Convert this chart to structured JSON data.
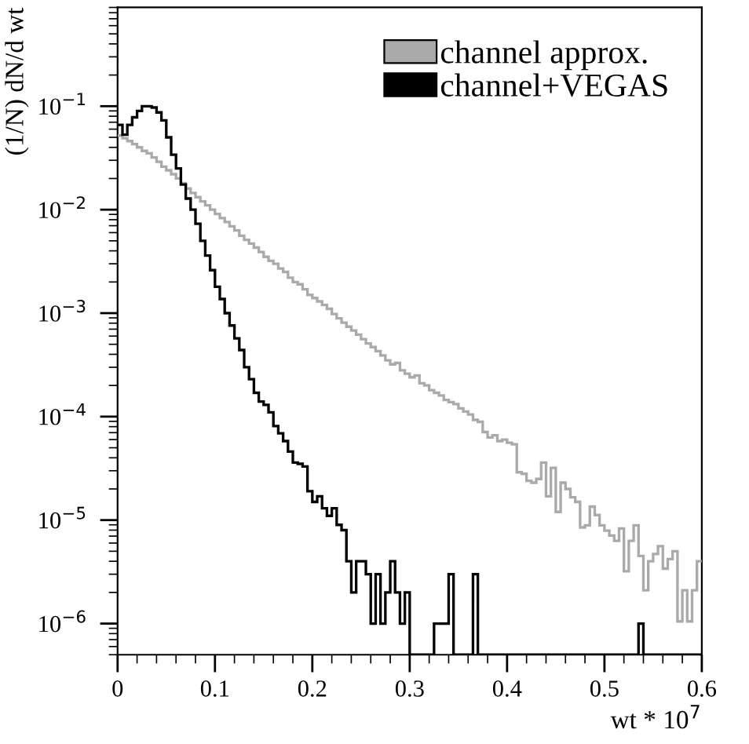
{
  "chart_data": {
    "type": "histogram",
    "xlabel": "wt * 10$^{7}$",
    "ylabel": "(1/N) dN/d wt",
    "bins": [
      0,
      0.005,
      0.01,
      0.015,
      0.02,
      0.025,
      0.03,
      0.035,
      0.04,
      0.045,
      0.05,
      0.055,
      0.06,
      0.065,
      0.07,
      0.075,
      0.08,
      0.085,
      0.09,
      0.095,
      0.1,
      0.105,
      0.11,
      0.115,
      0.12,
      0.125,
      0.13,
      0.135,
      0.14,
      0.145,
      0.15,
      0.155,
      0.16,
      0.165,
      0.17,
      0.175,
      0.18,
      0.185,
      0.19,
      0.195,
      0.2,
      0.205,
      0.21,
      0.215,
      0.22,
      0.225,
      0.23,
      0.235,
      0.24,
      0.245,
      0.25,
      0.255,
      0.26,
      0.265,
      0.27,
      0.275,
      0.28,
      0.285,
      0.29,
      0.295,
      0.3,
      0.305,
      0.31,
      0.315,
      0.32,
      0.325,
      0.33,
      0.335,
      0.34,
      0.345,
      0.35,
      0.355,
      0.36,
      0.365,
      0.37,
      0.375,
      0.38,
      0.385,
      0.39,
      0.395,
      0.4,
      0.405,
      0.41,
      0.415,
      0.42,
      0.425,
      0.43,
      0.435,
      0.44,
      0.445,
      0.45,
      0.455,
      0.46,
      0.465,
      0.47,
      0.475,
      0.48,
      0.485,
      0.49,
      0.495,
      0.5,
      0.505,
      0.51,
      0.515,
      0.52,
      0.525,
      0.53,
      0.535,
      0.54,
      0.545,
      0.55,
      0.555,
      0.56,
      0.565,
      0.57,
      0.575,
      0.58,
      0.585,
      0.59,
      0.595,
      0.6
    ],
    "series": [
      {
        "name": "channel approx.",
        "color": "#aaaaaa",
        "values": [
          0.052,
          0.049,
          0.046,
          0.043,
          0.04,
          0.037,
          0.035,
          0.032,
          0.029,
          0.026,
          0.024,
          0.022,
          0.02,
          0.018,
          0.016,
          0.0145,
          0.0132,
          0.012,
          0.011,
          0.01,
          0.0091,
          0.0083,
          0.0076,
          0.0069,
          0.0063,
          0.0056,
          0.0051,
          0.0047,
          0.0043,
          0.0039,
          0.0035,
          0.0032,
          0.003,
          0.0027,
          0.0025,
          0.0022,
          0.002,
          0.0019,
          0.0017,
          0.0015,
          0.0014,
          0.0013,
          0.0012,
          0.0011,
          0.00098,
          0.00089,
          0.00081,
          0.00074,
          0.00068,
          0.00062,
          0.00056,
          0.00051,
          0.00047,
          0.00043,
          0.00039,
          0.00035,
          0.00032,
          0.00033,
          0.00028,
          0.00026,
          0.00024,
          0.00025,
          0.00021,
          0.0002,
          0.00018,
          0.00017,
          0.00016,
          0.000145,
          0.000138,
          0.000132,
          0.00012,
          0.000112,
          0.000105,
          9.3e-05,
          8.9e-05,
          7.1e-05,
          6.3e-05,
          6.6e-05,
          5.8e-05,
          6e-05,
          5.6e-05,
          5.4e-05,
          2.9e-05,
          2.8e-05,
          2.4e-05,
          2.3e-05,
          2.5e-05,
          3.6e-05,
          1.7e-05,
          3.2e-05,
          1.2e-05,
          2.3e-05,
          2e-05,
          1.66e-05,
          1.5e-05,
          8.5e-06,
          8.9e-06,
          1.35e-05,
          1.12e-05,
          8.9e-06,
          7.9e-06,
          7.1e-06,
          6.3e-06,
          8.3e-06,
          3.2e-06,
          6.3e-06,
          8.9e-06,
          4.5e-06,
          2.1e-06,
          4e-06,
          4.7e-06,
          5.6e-06,
          3.4e-06,
          4.2e-06,
          5e-06,
          1.05e-06,
          2.1e-06,
          1.05e-06,
          2.1e-06,
          4e-06
        ]
      },
      {
        "name": "channel+VEGAS",
        "color": "#000000",
        "values": [
          0.066,
          0.053,
          0.066,
          0.078,
          0.09,
          0.1,
          0.1,
          0.097,
          0.087,
          0.073,
          0.05,
          0.034,
          0.025,
          0.0175,
          0.0128,
          0.01,
          0.0073,
          0.005,
          0.0036,
          0.0026,
          0.0018,
          0.00137,
          0.001,
          0.00076,
          0.00057,
          0.00044,
          0.0003,
          0.00023,
          0.00017,
          0.00014,
          0.00013,
          0.00011,
          8.1e-05,
          6.9e-05,
          5.8e-05,
          4.6e-05,
          3.6e-05,
          3.5e-05,
          3.3e-05,
          1.9e-05,
          1.5e-05,
          1.7e-05,
          1.3e-05,
          1.1e-05,
          1.3e-05,
          9e-06,
          8e-06,
          4e-06,
          2e-06,
          4e-06,
          4e-06,
          3e-06,
          1e-06,
          3e-06,
          1e-06,
          2e-06,
          4e-06,
          2e-06,
          1e-06,
          2e-06,
          null,
          null,
          null,
          null,
          null,
          1e-06,
          1e-06,
          1e-06,
          3e-06,
          null,
          null,
          null,
          null,
          3e-06,
          null,
          null,
          null,
          null,
          null,
          null,
          null,
          null,
          null,
          null,
          null,
          null,
          null,
          null,
          null,
          null,
          null,
          null,
          null,
          null,
          null,
          null,
          null,
          null,
          null,
          null,
          null,
          null,
          null,
          null,
          null,
          null,
          null,
          1e-06,
          null,
          null,
          null,
          null,
          null,
          null,
          null,
          null,
          null,
          null,
          null,
          null
        ]
      }
    ],
    "log": "y",
    "xlim": [
      0,
      0.6
    ],
    "ylim": [
      5e-07,
      0.9
    ],
    "xticks": [
      0,
      0.1,
      0.2,
      0.3,
      0.4,
      0.5,
      0.6
    ],
    "yticks": [
      {
        "value": 1e-06,
        "label": "10$^{−6}$"
      },
      {
        "value": 1e-05,
        "label": "10$^{−5}$"
      },
      {
        "value": 0.0001,
        "label": "10$^{−4}$"
      },
      {
        "value": 0.001,
        "label": "10$^{−3}$"
      },
      {
        "value": 0.01,
        "label": "10$^{−2}$"
      },
      {
        "value": 0.1,
        "label": "10$^{−1}$"
      }
    ],
    "legend": "top right",
    "grid": false
  }
}
